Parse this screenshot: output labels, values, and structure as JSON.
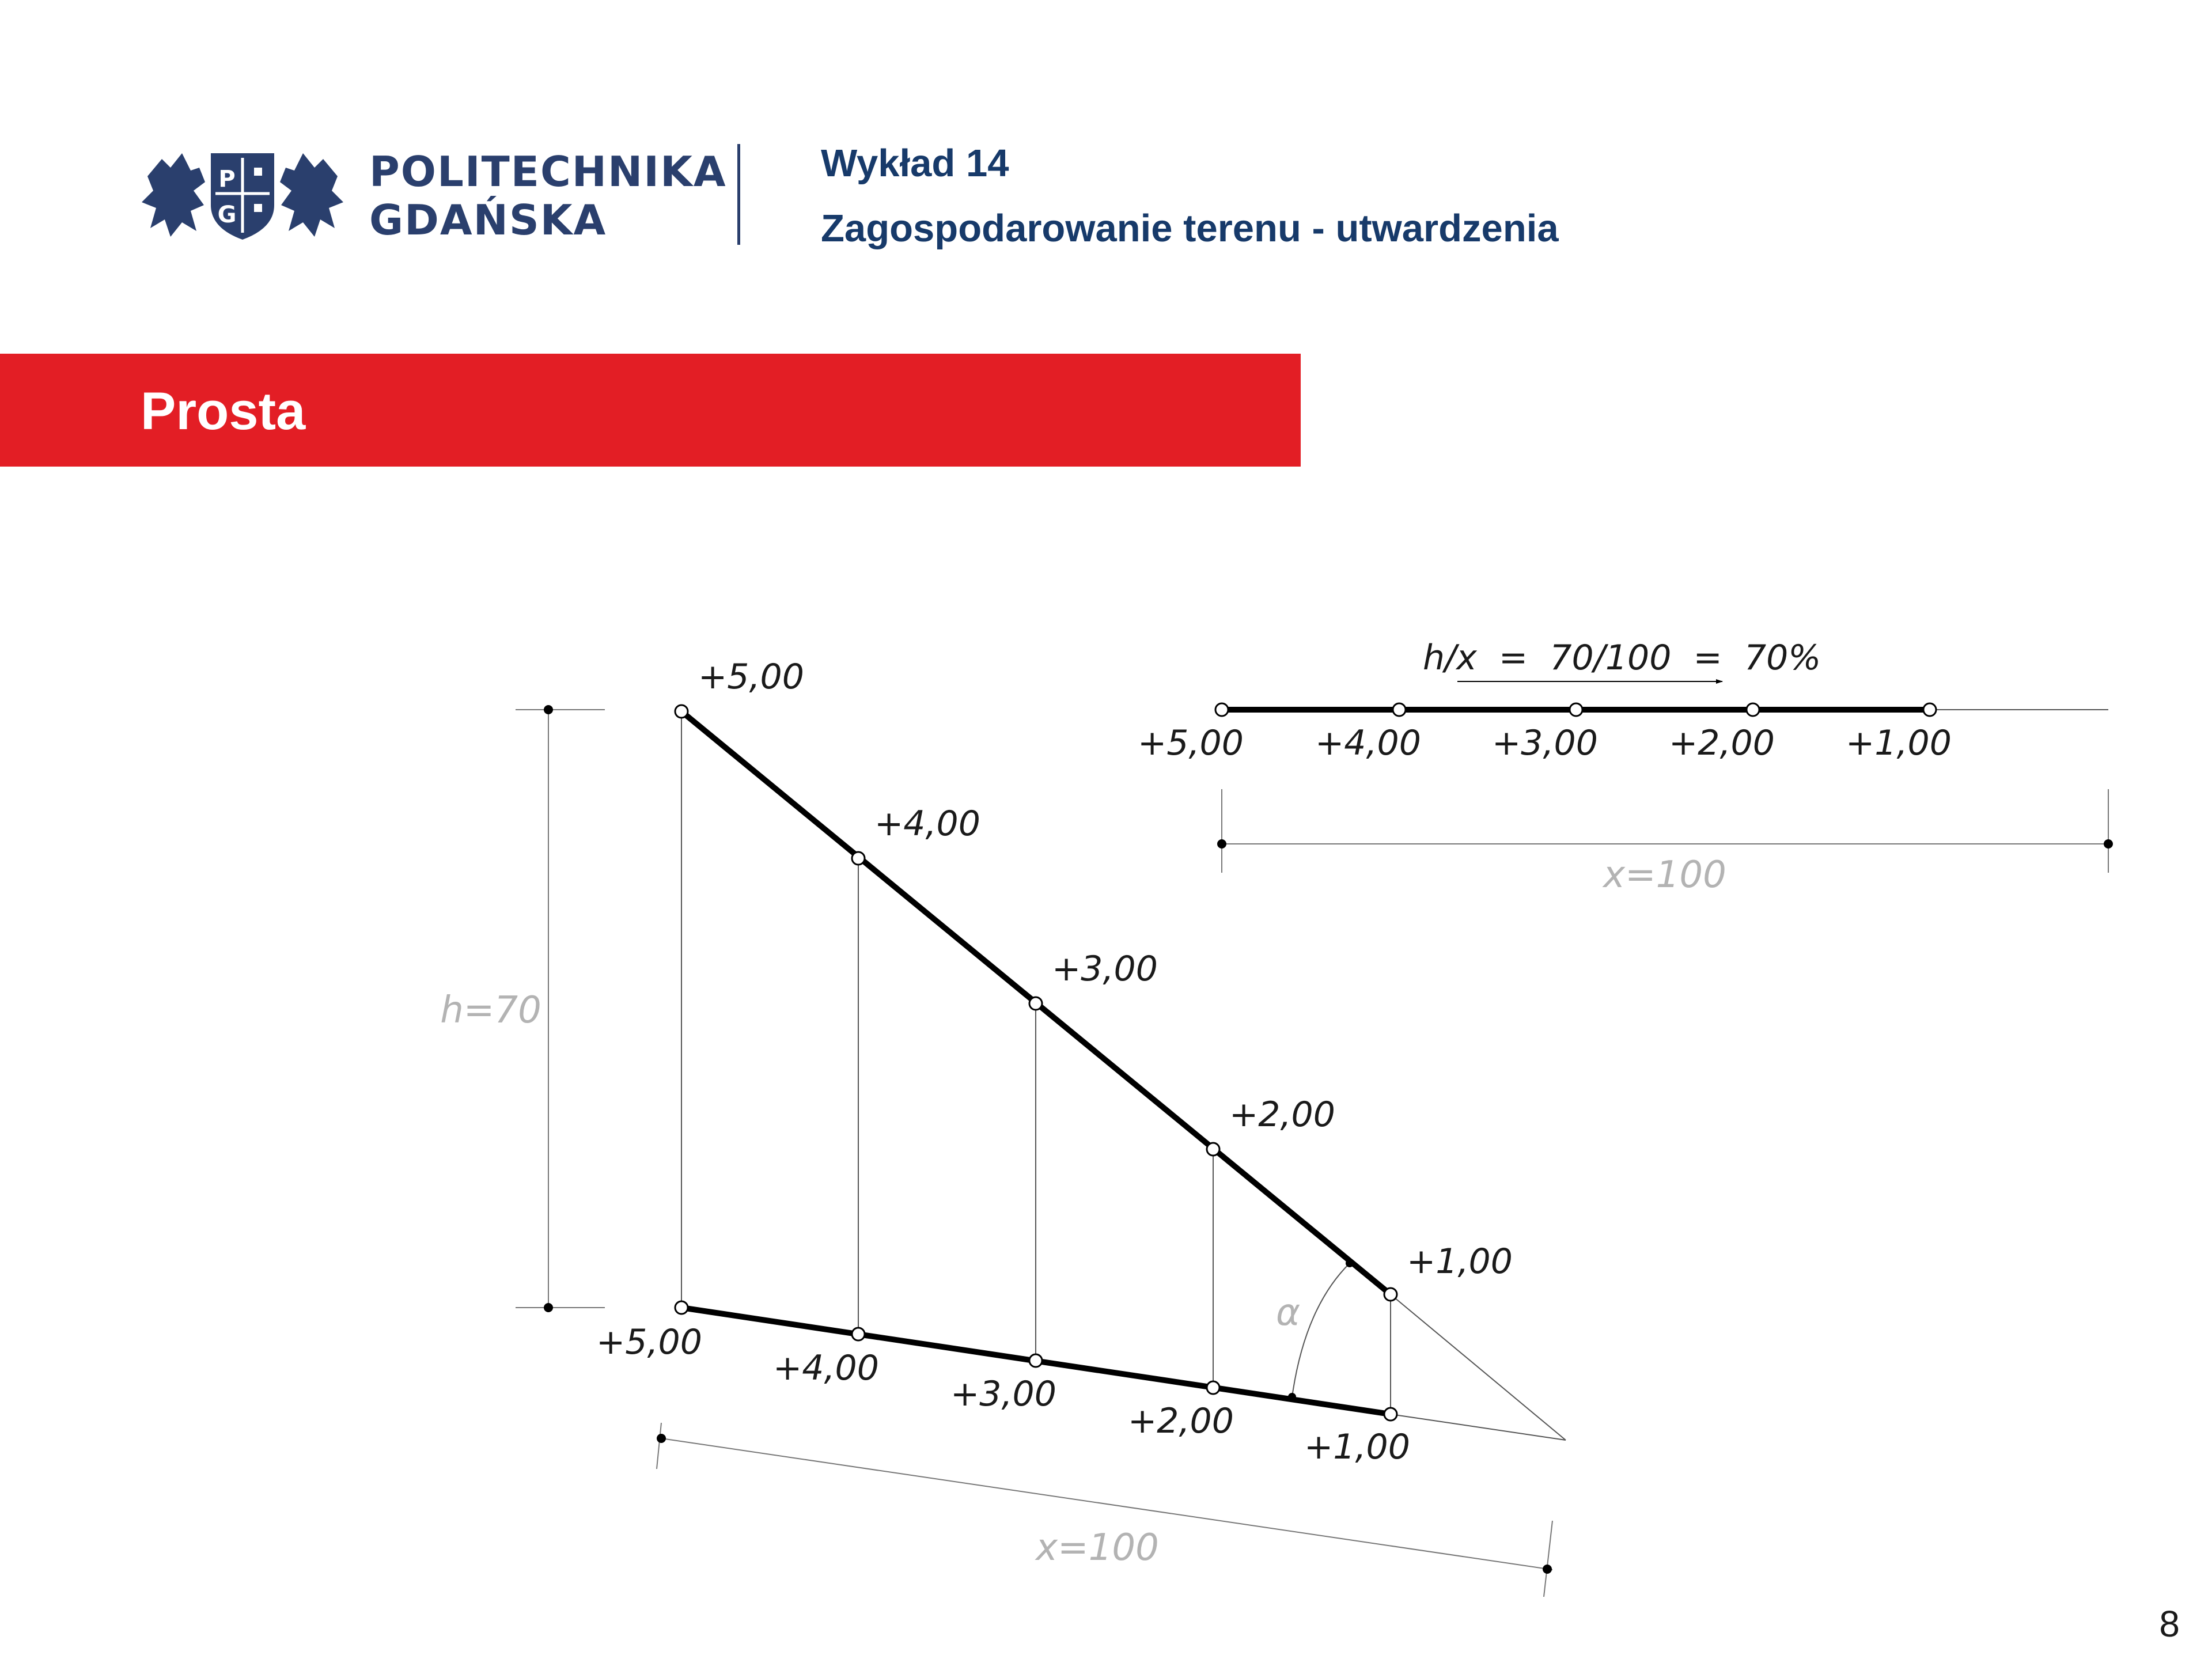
{
  "header": {
    "logo": {
      "line1": "POLITECHNIKA",
      "line2": "GDAŃSKA",
      "shield_letters": "PG"
    },
    "lecture_no": "Wykład 14",
    "lecture_topic": "Zagospodarowanie terenu - utwardzenia"
  },
  "banner": {
    "title": "Prosta"
  },
  "diagram": {
    "side_view": {
      "points": [
        "+5,00",
        "+4,00",
        "+3,00",
        "+2,00",
        "+1,00"
      ],
      "base_points": [
        "+5,00",
        "+4,00",
        "+3,00",
        "+2,00",
        "+1,00"
      ],
      "height_dim": "h=70",
      "length_dim": "x=100",
      "angle_label": "α"
    },
    "plan_view": {
      "points": [
        "+5,00",
        "+4,00",
        "+3,00",
        "+2,00",
        "+1,00"
      ],
      "slope_formula": "h/x  =  70/100  =  70%",
      "length_dim": "x=100"
    }
  },
  "page_number": "8",
  "colors": {
    "brand_navy": "#2a3f6d",
    "banner_red": "#e31e25",
    "title_navy": "#173a6a"
  }
}
